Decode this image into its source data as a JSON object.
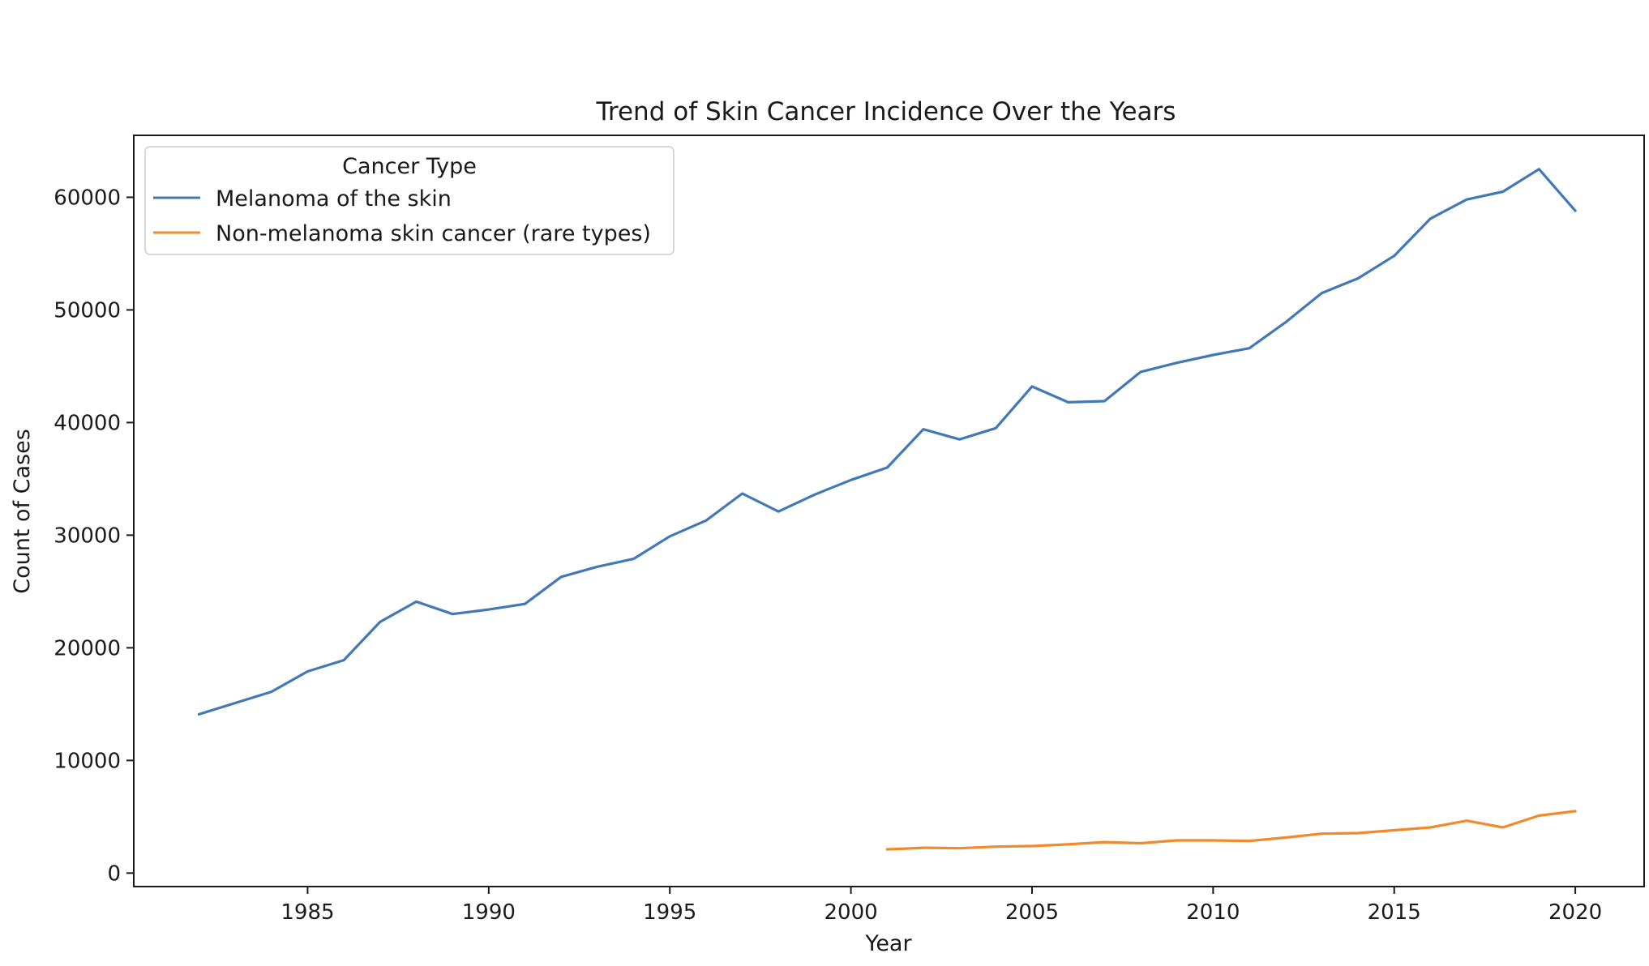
{
  "chart_data": {
    "type": "line",
    "title": "Trend of Skin Cancer Incidence Over the Years",
    "xlabel": "Year",
    "ylabel": "Count of Cases",
    "xlim": [
      1980.2,
      2021.9
    ],
    "ylim": [
      -1200,
      65500
    ],
    "xticks": [
      1985,
      1990,
      1995,
      2000,
      2005,
      2010,
      2015,
      2020
    ],
    "yticks": [
      0,
      10000,
      20000,
      30000,
      40000,
      50000,
      60000
    ],
    "grid": false,
    "legend": {
      "title": "Cancer Type",
      "placement": "top-left"
    },
    "series": [
      {
        "name": "Melanoma of the skin",
        "color": "#4279b5",
        "x": [
          1982,
          1983,
          1984,
          1985,
          1986,
          1987,
          1988,
          1989,
          1990,
          1991,
          1992,
          1993,
          1994,
          1995,
          1996,
          1997,
          1998,
          1999,
          2000,
          2001,
          2002,
          2003,
          2004,
          2005,
          2006,
          2007,
          2008,
          2009,
          2010,
          2011,
          2012,
          2013,
          2014,
          2015,
          2016,
          2017,
          2018,
          2019,
          2020
        ],
        "values": [
          14100,
          15100,
          16100,
          17900,
          18900,
          22300,
          24100,
          23000,
          23400,
          23900,
          26300,
          27200,
          27900,
          29900,
          31300,
          33700,
          32100,
          33600,
          34900,
          36000,
          39400,
          38500,
          39500,
          43200,
          41800,
          41900,
          44500,
          45300,
          46000,
          46600,
          48900,
          51500,
          52800,
          54800,
          58100,
          59800,
          60500,
          62500,
          58800
        ]
      },
      {
        "name": "Non-melanoma skin cancer (rare types)",
        "color": "#f08a2c",
        "x": [
          2001,
          2002,
          2003,
          2004,
          2005,
          2006,
          2007,
          2008,
          2009,
          2010,
          2011,
          2012,
          2013,
          2014,
          2015,
          2016,
          2017,
          2018,
          2019,
          2020
        ],
        "values": [
          2100,
          2250,
          2200,
          2350,
          2400,
          2550,
          2750,
          2650,
          2900,
          2900,
          2850,
          3150,
          3500,
          3550,
          3800,
          4050,
          4650,
          4050,
          5100,
          5500
        ]
      }
    ]
  }
}
